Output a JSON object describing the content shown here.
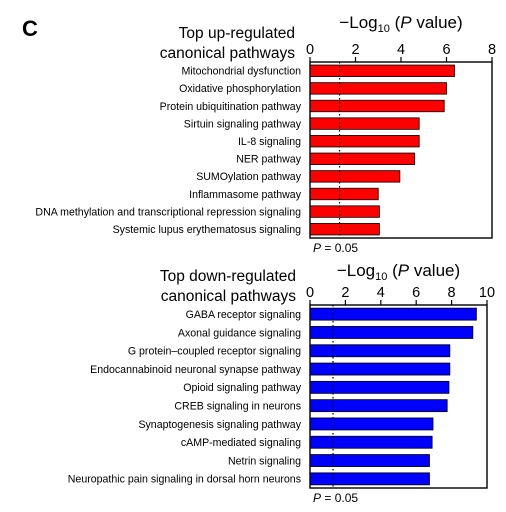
{
  "panel_label": "C",
  "chart_data": [
    {
      "type": "bar",
      "orientation": "horizontal",
      "title_lines": [
        "Top up-regulated",
        "canonical pathways"
      ],
      "xlabel": {
        "prefix": "−Log",
        "sub": "10",
        "mid": " (",
        "italic": "P",
        "suffix": " value)"
      },
      "xlim": [
        0,
        8
      ],
      "xticks": [
        0,
        2,
        4,
        6,
        8
      ],
      "threshold": {
        "value": 1.3,
        "label_italic": "P",
        "label_rest": " = 0.05"
      },
      "bar_color": "#ff0000",
      "categories": [
        "Mitochondrial dysfunction",
        "Oxidative phosphorylation",
        "Protein ubiquitination pathway",
        "Sirtuin signaling pathway",
        "IL-8 signaling",
        "NER pathway",
        "SUMOylation pathway",
        "Inflammasome pathway",
        "DNA methylation and transcriptional repression signaling",
        "Systemic lupus erythematosus signaling"
      ],
      "values": [
        6.35,
        6.0,
        5.9,
        4.8,
        4.8,
        4.6,
        3.95,
        3.0,
        3.05,
        3.05
      ]
    },
    {
      "type": "bar",
      "orientation": "horizontal",
      "title_lines": [
        "Top down-regulated",
        "canonical pathways"
      ],
      "xlabel": {
        "prefix": "−Log",
        "sub": "10",
        "mid": " (",
        "italic": "P",
        "suffix": " value)"
      },
      "xlim": [
        0,
        10
      ],
      "xticks": [
        0,
        2,
        4,
        6,
        8,
        10
      ],
      "threshold": {
        "value": 1.3,
        "label_italic": "P",
        "label_rest": " = 0.05"
      },
      "bar_color": "#0000ff",
      "categories": [
        "GABA receptor signaling",
        "Axonal guidance signaling",
        "G protein–coupled receptor signaling",
        "Endocannabinoid neuronal synapse pathway",
        "Opioid signaling pathway",
        "CREB signaling in neurons",
        "Synaptogenesis signaling pathway",
        "cAMP-mediated signaling",
        "Netrin signaling",
        "Neuropathic pain signaling in dorsal horn neurons"
      ],
      "values": [
        9.4,
        9.2,
        7.9,
        7.9,
        7.85,
        7.75,
        6.95,
        6.9,
        6.75,
        6.75
      ]
    }
  ]
}
